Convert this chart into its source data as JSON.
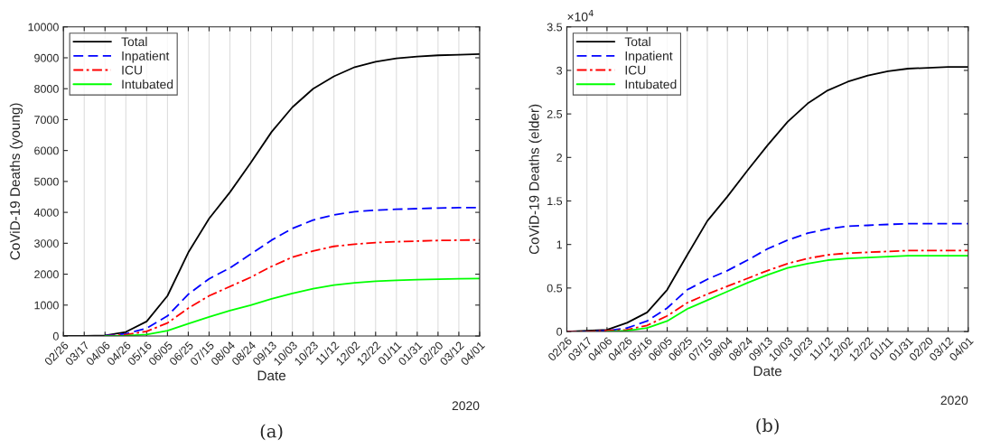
{
  "chart_data": [
    {
      "type": "line",
      "xlabel": "Date",
      "ylabel": "CoViD-19 Deaths (young)",
      "x": [
        "2020-02-26",
        "2020-03-17",
        "2020-04-06",
        "2020-04-26",
        "2020-05-16",
        "2020-06-05",
        "2020-06-25",
        "2020-07-15",
        "2020-08-04",
        "2020-08-24",
        "2020-09-13",
        "2020-10-03",
        "2020-10-23",
        "2020-11-12",
        "2020-12-02",
        "2020-12-22",
        "2021-01-11",
        "2021-01-31",
        "2021-02-20",
        "2021-03-12",
        "2021-04-01"
      ],
      "xlim": [
        "2020-02-26",
        "2021-04-01"
      ],
      "xticks": [
        {
          "value": "2020-02-26",
          "label": "02/26"
        },
        {
          "value": "2020-03-17",
          "label": "03/17"
        },
        {
          "value": "2020-04-06",
          "label": "04/06"
        },
        {
          "value": "2020-04-26",
          "label": "04/26"
        },
        {
          "value": "2020-05-16",
          "label": "05/16"
        },
        {
          "value": "2020-06-05",
          "label": "06/05"
        },
        {
          "value": "2020-06-25",
          "label": "06/25"
        },
        {
          "value": "2020-07-15",
          "label": "07/15"
        },
        {
          "value": "2020-08-04",
          "label": "08/04"
        },
        {
          "value": "2020-08-24",
          "label": "08/24"
        },
        {
          "value": "2020-09-13",
          "label": "09/13"
        },
        {
          "value": "2020-10-03",
          "label": "10/03"
        },
        {
          "value": "2020-10-23",
          "label": "10/23"
        },
        {
          "value": "2020-11-12",
          "label": "11/12"
        },
        {
          "value": "2020-12-02",
          "label": "12/02"
        },
        {
          "value": "2020-12-22",
          "label": "12/22"
        },
        {
          "value": "2021-01-11",
          "label": "01/11"
        },
        {
          "value": "2021-01-31",
          "label": "01/31"
        },
        {
          "value": "2021-02-20",
          "label": "02/20"
        },
        {
          "value": "2021-03-12",
          "label": "03/12"
        },
        {
          "value": "2021-04-01",
          "label": "04/01"
        }
      ],
      "ylim": [
        0,
        10000
      ],
      "yticks": [
        0,
        1000,
        2000,
        3000,
        4000,
        5000,
        6000,
        7000,
        8000,
        9000,
        10000
      ],
      "grid": "x",
      "legend": "top left",
      "series": [
        {
          "name": "Total",
          "color": "#000000",
          "line_style": "solid",
          "values": [
            0,
            0,
            20,
            130,
            470,
            1300,
            2700,
            3800,
            4650,
            5600,
            6600,
            7400,
            8000,
            8400,
            8700,
            8870,
            8980,
            9040,
            9080,
            9100,
            9120
          ]
        },
        {
          "name": "Inpatient",
          "color": "#0000ff",
          "line_style": "dashed",
          "values": [
            null,
            null,
            10,
            70,
            250,
            650,
            1350,
            1850,
            2200,
            2650,
            3100,
            3480,
            3750,
            3920,
            4020,
            4070,
            4100,
            4120,
            4140,
            4150,
            4150
          ]
        },
        {
          "name": "ICU",
          "color": "#ff0000",
          "line_style": "dashdot",
          "values": [
            null,
            null,
            0,
            40,
            150,
            420,
            900,
            1300,
            1600,
            1900,
            2250,
            2550,
            2750,
            2900,
            2970,
            3020,
            3050,
            3070,
            3090,
            3100,
            3110
          ]
        },
        {
          "name": "Intubated",
          "color": "#00ff00",
          "line_style": "solid",
          "values": [
            null,
            null,
            0,
            10,
            50,
            170,
            400,
            620,
            820,
            1000,
            1200,
            1380,
            1530,
            1650,
            1720,
            1770,
            1800,
            1820,
            1840,
            1850,
            1860
          ]
        }
      ],
      "annotations": [
        "2020",
        "(a)"
      ]
    },
    {
      "type": "line",
      "xlabel": "Date",
      "ylabel": "CoViD-19 Deaths (elder)",
      "x": [
        "2020-02-26",
        "2020-03-17",
        "2020-04-06",
        "2020-04-26",
        "2020-05-16",
        "2020-06-05",
        "2020-06-25",
        "2020-07-15",
        "2020-08-04",
        "2020-08-24",
        "2020-09-13",
        "2020-10-03",
        "2020-10-23",
        "2020-11-12",
        "2020-12-02",
        "2020-12-22",
        "2021-01-11",
        "2021-01-31",
        "2021-02-20",
        "2021-03-12",
        "2021-04-01"
      ],
      "xlim": [
        "2020-02-26",
        "2021-04-01"
      ],
      "xticks": [
        {
          "value": "2020-02-26",
          "label": "02/26"
        },
        {
          "value": "2020-03-17",
          "label": "03/17"
        },
        {
          "value": "2020-04-06",
          "label": "04/06"
        },
        {
          "value": "2020-04-26",
          "label": "04/26"
        },
        {
          "value": "2020-05-16",
          "label": "05/16"
        },
        {
          "value": "2020-06-05",
          "label": "06/05"
        },
        {
          "value": "2020-06-25",
          "label": "06/25"
        },
        {
          "value": "2020-07-15",
          "label": "07/15"
        },
        {
          "value": "2020-08-04",
          "label": "08/04"
        },
        {
          "value": "2020-08-24",
          "label": "08/24"
        },
        {
          "value": "2020-09-13",
          "label": "09/13"
        },
        {
          "value": "2020-10-03",
          "label": "10/03"
        },
        {
          "value": "2020-10-23",
          "label": "10/23"
        },
        {
          "value": "2020-11-12",
          "label": "11/12"
        },
        {
          "value": "2020-12-02",
          "label": "12/02"
        },
        {
          "value": "2020-12-22",
          "label": "12/22"
        },
        {
          "value": "2021-01-11",
          "label": "01/11"
        },
        {
          "value": "2021-01-31",
          "label": "01/31"
        },
        {
          "value": "2021-02-20",
          "label": "02/20"
        },
        {
          "value": "2021-03-12",
          "label": "03/12"
        },
        {
          "value": "2021-04-01",
          "label": "04/01"
        }
      ],
      "ylim": [
        0,
        3.5
      ],
      "yticks": [
        0,
        0.5,
        1,
        1.5,
        2,
        2.5,
        3,
        3.5
      ],
      "grid": "x",
      "legend": "top left",
      "series": [
        {
          "name": "Total",
          "color": "#000000",
          "line_style": "solid",
          "values": [
            0,
            0.01,
            0.02,
            0.1,
            0.22,
            0.48,
            0.88,
            1.27,
            1.55,
            1.85,
            2.14,
            2.41,
            2.62,
            2.77,
            2.87,
            2.94,
            2.99,
            3.02,
            3.03,
            3.04,
            3.04
          ]
        },
        {
          "name": "Inpatient",
          "color": "#0000ff",
          "line_style": "dashed",
          "values": [
            0,
            0,
            0.01,
            0.04,
            0.12,
            0.27,
            0.48,
            0.6,
            0.7,
            0.82,
            0.95,
            1.05,
            1.13,
            1.18,
            1.21,
            1.22,
            1.23,
            1.24,
            1.24,
            1.24,
            1.24
          ]
        },
        {
          "name": "ICU",
          "color": "#ff0000",
          "line_style": "dashdot",
          "values": [
            0,
            0,
            0.01,
            0.02,
            0.07,
            0.18,
            0.33,
            0.43,
            0.52,
            0.61,
            0.7,
            0.78,
            0.84,
            0.88,
            0.9,
            0.91,
            0.92,
            0.93,
            0.93,
            0.93,
            0.93
          ]
        },
        {
          "name": "Intubated",
          "color": "#00ff00",
          "line_style": "solid",
          "values": [
            null,
            null,
            0,
            0.01,
            0.04,
            0.12,
            0.26,
            0.36,
            0.46,
            0.56,
            0.65,
            0.73,
            0.78,
            0.82,
            0.84,
            0.85,
            0.86,
            0.87,
            0.87,
            0.87,
            0.87
          ]
        }
      ],
      "annotations": [
        "×10$^{4}$",
        "2020",
        "(b)"
      ]
    }
  ]
}
